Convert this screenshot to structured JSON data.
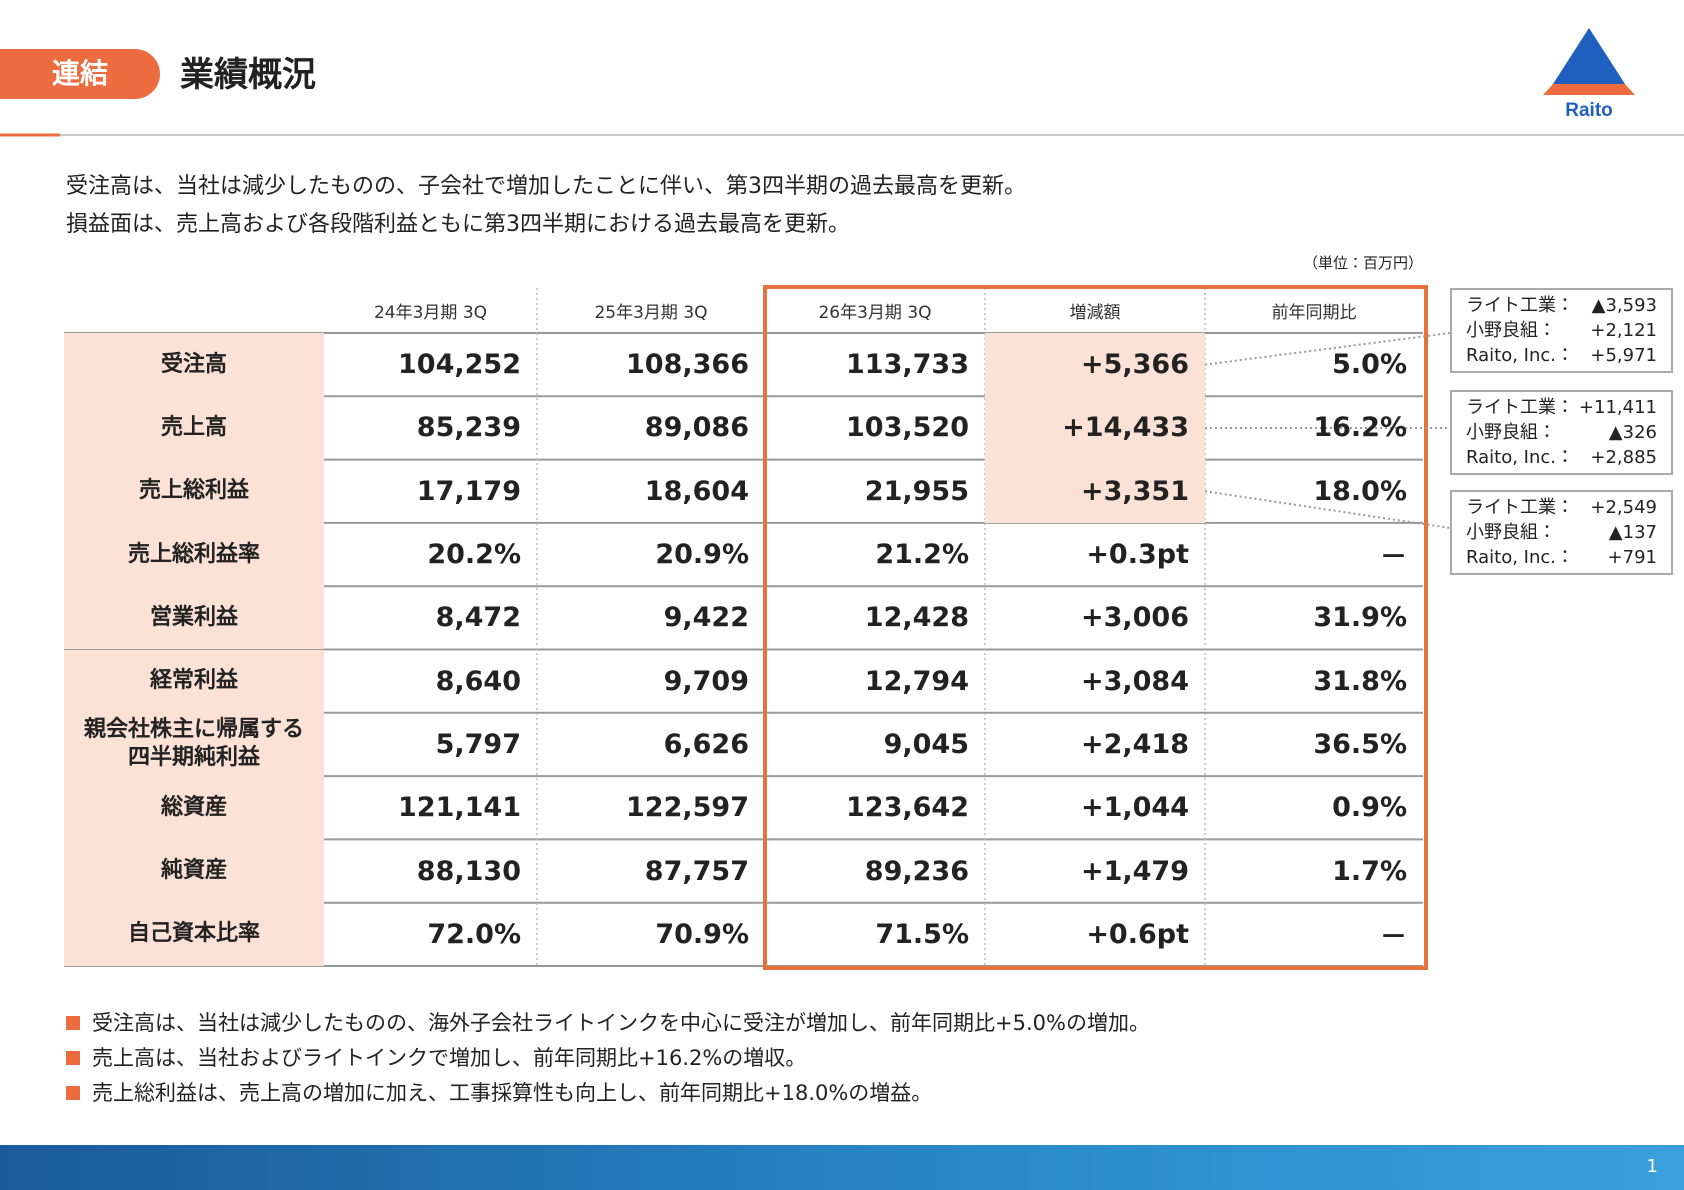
{
  "header": {
    "badge": "連結",
    "title": "業績概況",
    "logo": "Raito"
  },
  "intro": [
    "受注高は、当社は減少したものの、子会社で増加したことに伴い、第3四半期の過去最高を更新。",
    "損益面は、売上高および各段階利益ともに第3四半期における過去最高を更新。"
  ],
  "unit": "（単位：百万円）",
  "table": {
    "columns": [
      "24年3月期 3Q",
      "25年3月期 3Q",
      "26年3月期 3Q",
      "増減額",
      "前年同期比"
    ],
    "rows": [
      [
        "受注高",
        "104,252",
        "108,366",
        "113,733",
        "+5,366",
        "5.0%"
      ],
      [
        "売上高",
        "85,239",
        "89,086",
        "103,520",
        "+14,433",
        "16.2%"
      ],
      [
        "売上総利益",
        "17,179",
        "18,604",
        "21,955",
        "+3,351",
        "18.0%"
      ],
      [
        "売上総利益率",
        "20.2%",
        "20.9%",
        "21.2%",
        "+0.3pt",
        "－"
      ],
      [
        "営業利益",
        "8,472",
        "9,422",
        "12,428",
        "+3,006",
        "31.9%"
      ],
      [
        "経常利益",
        "8,640",
        "9,709",
        "12,794",
        "+3,084",
        "31.8%"
      ],
      [
        "親会社株主に帰属する\n四半期純利益",
        "5,797",
        "6,626",
        "9,045",
        "+2,418",
        "36.5%"
      ],
      [
        "総資産",
        "121,141",
        "122,597",
        "123,642",
        "+1,044",
        "0.9%"
      ],
      [
        "純資産",
        "88,130",
        "87,757",
        "89,236",
        "+1,479",
        "1.7%"
      ],
      [
        "自己資本比率",
        "72.0%",
        "70.9%",
        "71.5%",
        "+0.6pt",
        "－"
      ]
    ]
  },
  "callouts": [
    [
      {
        "label": "ライト工業：",
        "value": "▲3,593"
      },
      {
        "label": "小野良組：",
        "value": "+2,121"
      },
      {
        "label": "Raito, Inc.：",
        "value": "+5,971"
      }
    ],
    [
      {
        "label": "ライト工業：",
        "value": "+11,411"
      },
      {
        "label": "小野良組：",
        "value": "▲326"
      },
      {
        "label": "Raito, Inc.：",
        "value": "+2,885"
      }
    ],
    [
      {
        "label": "ライト工業：",
        "value": "+2,549"
      },
      {
        "label": "小野良組：",
        "value": "▲137"
      },
      {
        "label": "Raito, Inc.：",
        "value": "+791"
      }
    ]
  ],
  "bullets": [
    "受注高は、当社は減少したものの、海外子会社ライトインクを中心に受注が増加し、前年同期比+5.0%の増加。",
    "売上高は、当社およびライトインクで増加し、前年同期比+16.2%の増収。",
    "売上総利益は、売上高の増加に加え、工事採算性も向上し、前年同期比+18.0%の増益。"
  ],
  "page_number": "1"
}
